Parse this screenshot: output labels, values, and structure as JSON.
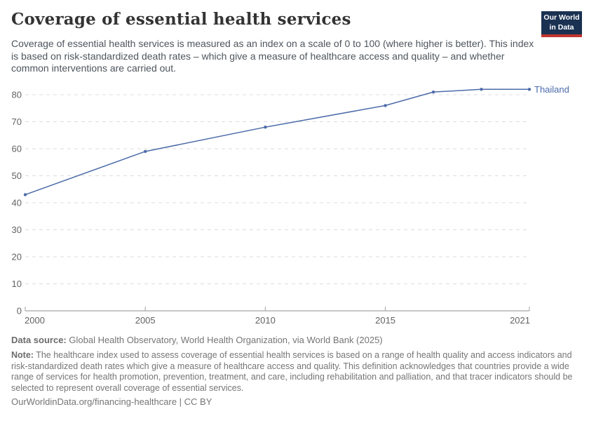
{
  "header": {
    "title": "Coverage of essential health services",
    "subtitle": "Coverage of essential health services is measured as an index on a scale of 0 to 100 (where higher is better). This index is based on risk-standardized death rates – which give a measure of healthcare access and quality – and whether common interventions are carried out.",
    "logo": {
      "line1": "Our World",
      "line2": "in Data"
    }
  },
  "chart_data": {
    "type": "line",
    "title": "Coverage of essential health services",
    "x": [
      2000,
      2005,
      2010,
      2015,
      2017,
      2019,
      2021
    ],
    "series": [
      {
        "name": "Thailand",
        "values": [
          43,
          59,
          68,
          76,
          81,
          82,
          82
        ]
      }
    ],
    "x_ticks": [
      2000,
      2005,
      2010,
      2015,
      2021
    ],
    "y_ticks": [
      0,
      10,
      20,
      30,
      40,
      50,
      60,
      70,
      80
    ],
    "xlim": [
      2000,
      2021
    ],
    "ylim": [
      0,
      85
    ],
    "xlabel": "",
    "ylabel": "",
    "grid": "horizontal-dashed",
    "legend_position": "end-of-line-label",
    "colors": {
      "series": "#4c6ba9",
      "gridline": "#dcdcdc",
      "axis": "#8f8f8f",
      "tick": "#a3a3a3",
      "tick_label": "#636363"
    }
  },
  "footer": {
    "source_label": "Data source:",
    "source_text": "Global Health Observatory, World Health Organization, via World Bank (2025)",
    "note_label": "Note:",
    "note_text": "The healthcare index used to assess coverage of essential health services is based on a range of health quality and access indicators and risk-standardized death rates which give a measure of healthcare access and quality. This definition acknowledges that countries provide a wide range of services for health promotion, prevention, treatment, and care, including rehabilitation and palliation, and that tracer indicators should be selected to represent overall coverage of essential services.",
    "attribution": "OurWorldinData.org/financing-healthcare | CC BY"
  }
}
